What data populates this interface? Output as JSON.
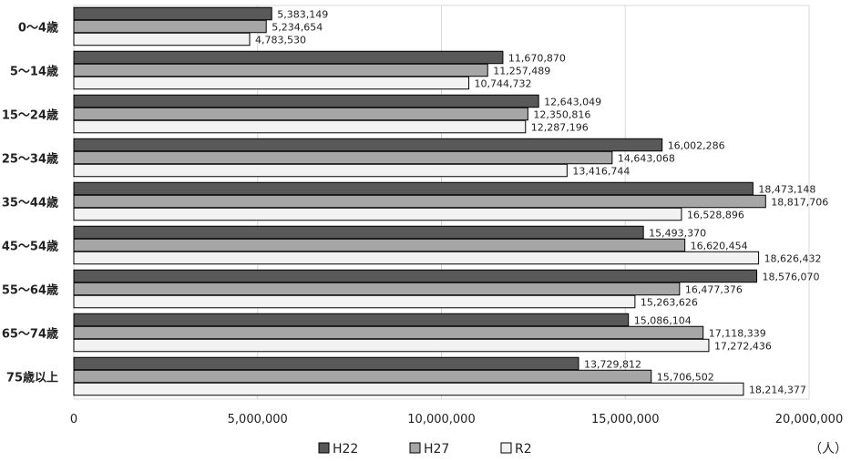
{
  "chart_data": {
    "type": "bar",
    "orientation": "horizontal",
    "title": "",
    "xlabel": "",
    "ylabel": "",
    "unit": "（人）",
    "categories": [
      "0～4歳",
      "5～14歳",
      "15～24歳",
      "25～34歳",
      "35～44歳",
      "45～54歳",
      "55～64歳",
      "65～74歳",
      "75歳以上"
    ],
    "series": [
      {
        "name": "H22",
        "color": "#595959",
        "values": [
          5383149,
          11670870,
          12643049,
          16002286,
          18473148,
          15493370,
          18576070,
          15086104,
          13729812
        ],
        "labels": [
          "5,383,149",
          "11,670,870",
          "12,643,049",
          "16,002,286",
          "18,473,148",
          "15,493,370",
          "18,576,070",
          "15,086,104",
          "13,729,812"
        ]
      },
      {
        "name": "H27",
        "color": "#a6a6a6",
        "values": [
          5234654,
          11257489,
          12350816,
          14643068,
          18817706,
          16620454,
          16477376,
          17118339,
          15706502
        ],
        "labels": [
          "5,234,654",
          "11,257,489",
          "12,350,816",
          "14,643,068",
          "18,817,706",
          "16,620,454",
          "16,477,376",
          "17,118,339",
          "15,706,502"
        ]
      },
      {
        "name": "R2",
        "color": "#f2f2f2",
        "values": [
          4783530,
          10744732,
          12287196,
          13416744,
          16528896,
          18626432,
          15263626,
          17272436,
          18214377
        ],
        "labels": [
          "4,783,530",
          "10,744,732",
          "12,287,196",
          "13,416,744",
          "16,528,896",
          "18,626,432",
          "15,263,626",
          "17,272,436",
          "18,214,377"
        ]
      }
    ],
    "xlim": [
      0,
      20000000
    ],
    "xticks": [
      0,
      5000000,
      10000000,
      15000000,
      20000000
    ],
    "xtick_labels": [
      "0",
      "5,000,000",
      "10,000,000",
      "15,000,000",
      "20,000,000"
    ],
    "grid": true,
    "legend_position": "bottom",
    "legend_marker": "■"
  }
}
